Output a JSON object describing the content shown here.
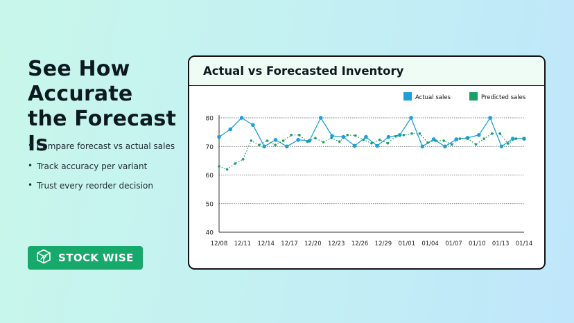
{
  "headline": "See How Accurate the Forecast Is",
  "bullets": [
    "Compare forecast vs actual sales",
    "Track accuracy per variant",
    "Trust every reorder decision"
  ],
  "brand": {
    "name": "STOCK WISE",
    "icon": "stockwise-cube-logo-icon"
  },
  "colors": {
    "actual": "#1e9fd8",
    "predicted": "#19a068",
    "brand": "#17a86c"
  },
  "chart_data": {
    "type": "line",
    "title": "Actual vs Forecasted Inventory",
    "xlabel": "",
    "ylabel": "",
    "ylim": [
      40,
      80
    ],
    "yticks": [
      40,
      50,
      60,
      70,
      80
    ],
    "xtick_labels": [
      "12/08",
      "12/11",
      "12/14",
      "12/17",
      "12/20",
      "12/23",
      "12/26",
      "12/29",
      "01/01",
      "01/04",
      "01/07",
      "01/10",
      "01/13",
      "01/14"
    ],
    "grid": true,
    "legend": "top-right",
    "series": [
      {
        "name": "Actual sales",
        "style": "solid",
        "values": [
          73.3,
          76.0,
          80.0,
          77.5,
          70.0,
          72.3,
          70.0,
          72.3,
          72.0,
          80.0,
          73.7,
          73.3,
          70.2,
          73.3,
          70.2,
          73.3,
          74.0,
          80.0,
          70.0,
          72.5,
          70.0,
          72.5,
          73.0,
          74.0,
          80.0,
          70.0,
          72.7,
          72.7
        ]
      },
      {
        "name": "Predicted sales",
        "style": "dotted",
        "values": [
          63.0,
          62.0,
          64.0,
          65.5,
          72.0,
          70.5,
          72.0,
          70.5,
          72.0,
          74.0,
          74.0,
          71.7,
          72.9,
          71.5,
          72.9,
          71.7,
          74.0,
          73.8,
          72.3,
          71.1,
          72.3,
          71.1,
          73.5,
          74.0,
          74.5,
          74.5,
          71.3,
          72.0,
          72.0,
          70.7,
          72.7,
          72.7,
          70.7,
          72.7,
          74.5,
          74.5,
          71.0,
          72.7,
          72.7
        ]
      }
    ]
  }
}
